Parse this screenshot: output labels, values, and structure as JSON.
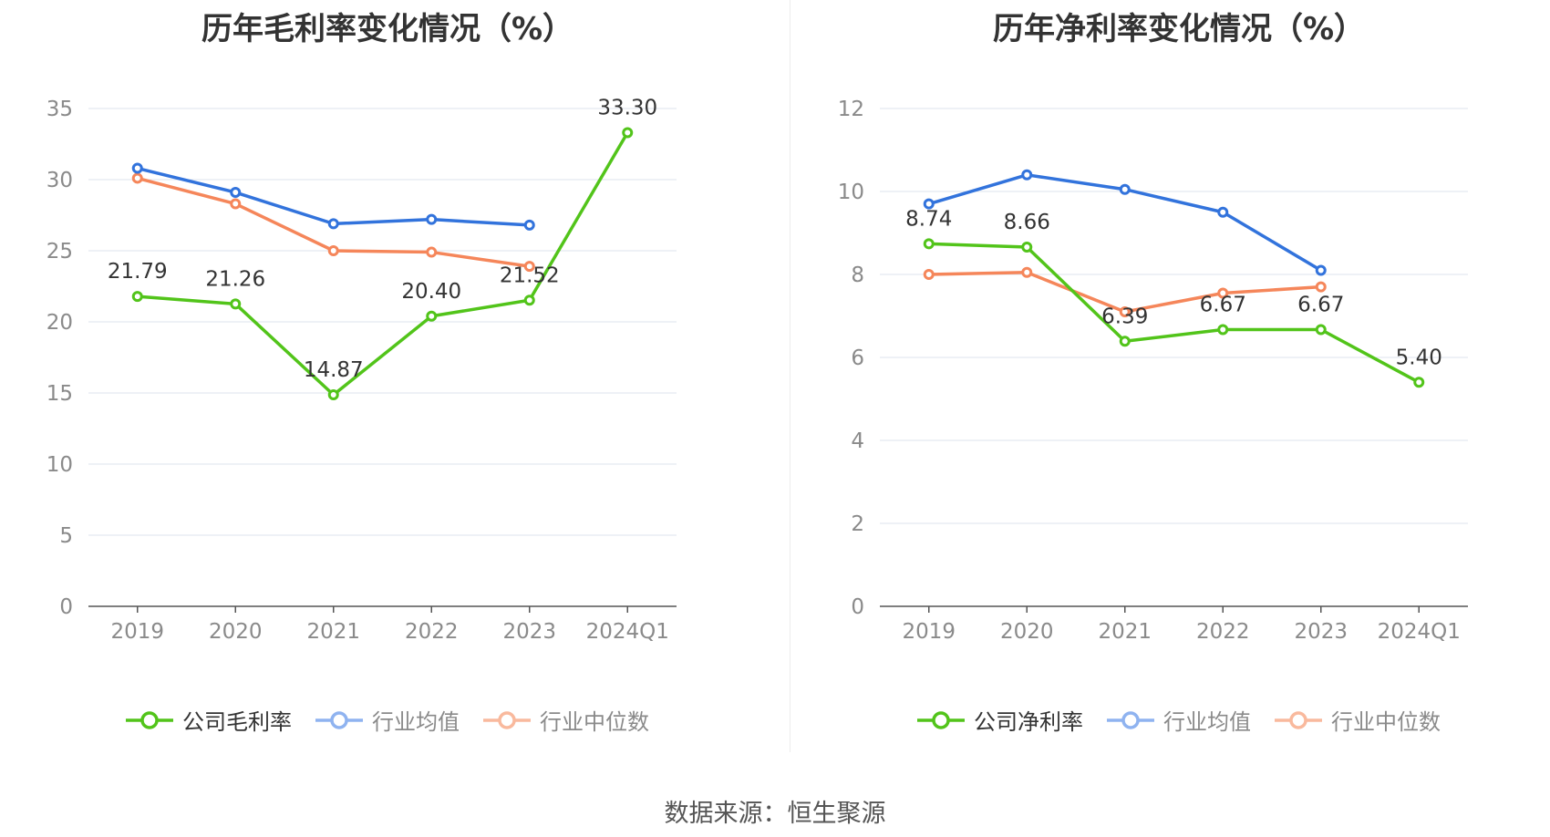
{
  "chart_data": [
    {
      "type": "line",
      "title": "历年毛利率变化情况（%）",
      "categories": [
        "2019",
        "2020",
        "2021",
        "2022",
        "2023",
        "2024Q1"
      ],
      "ylim": [
        0,
        35
      ],
      "yticks": [
        "0",
        "5",
        "10",
        "15",
        "20",
        "25",
        "30",
        "35"
      ],
      "grid": true,
      "legend_position": "bottom",
      "series": [
        {
          "name": "公司毛利率",
          "color": "#52c41a",
          "values": [
            21.79,
            21.26,
            14.87,
            20.4,
            21.52,
            33.3
          ],
          "labels": [
            "21.79",
            "21.26",
            "14.87",
            "20.40",
            "21.52",
            "33.30"
          ]
        },
        {
          "name": "行业均值",
          "color": "#3273dc",
          "values": [
            30.8,
            29.1,
            26.9,
            27.2,
            26.8,
            null
          ]
        },
        {
          "name": "行业中位数",
          "color": "#f5865a",
          "values": [
            30.1,
            28.3,
            25.0,
            24.9,
            23.9,
            null
          ]
        }
      ]
    },
    {
      "type": "line",
      "title": "历年净利率变化情况（%）",
      "categories": [
        "2019",
        "2020",
        "2021",
        "2022",
        "2023",
        "2024Q1"
      ],
      "ylim": [
        0,
        12
      ],
      "yticks": [
        "0",
        "2",
        "4",
        "6",
        "8",
        "10",
        "12"
      ],
      "grid": true,
      "legend_position": "bottom",
      "series": [
        {
          "name": "公司净利率",
          "color": "#52c41a",
          "values": [
            8.74,
            8.66,
            6.39,
            6.67,
            6.67,
            5.4
          ],
          "labels": [
            "8.74",
            "8.66",
            "6.39",
            "6.67",
            "6.67",
            "5.40"
          ]
        },
        {
          "name": "行业均值",
          "color": "#3273dc",
          "values": [
            9.7,
            10.4,
            10.05,
            9.5,
            8.1,
            null
          ]
        },
        {
          "name": "行业中位数",
          "color": "#f5865a",
          "values": [
            8.0,
            8.05,
            7.1,
            7.55,
            7.7,
            null
          ]
        }
      ]
    }
  ],
  "source": "数据来源：恒生聚源"
}
